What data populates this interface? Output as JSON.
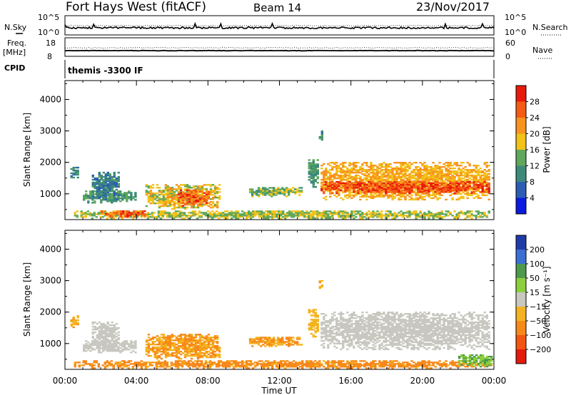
{
  "header": {
    "title": "Fort Hays West (fitACF)",
    "beam": "Beam 14",
    "date": "23/Nov/2017"
  },
  "top_panels": {
    "nsky_label": "N.Sky",
    "nsky_ticks": [
      "10^5",
      "10^0"
    ],
    "nsearch_label": "N.Search",
    "nsearch_ticks": [
      "10^5",
      "10^0"
    ],
    "freq_label": "Freq.",
    "freq_unit": "[MHz]",
    "freq_ticks": [
      "18",
      "8"
    ],
    "nave_label": "Nave",
    "nave_ticks": [
      "60",
      "0"
    ],
    "cpid_label": "CPID",
    "cpid_value": "themis -3300 IF"
  },
  "colors": {
    "power_scale": [
      "#0a1adf",
      "#2b5db5",
      "#3d8a7a",
      "#5fa85b",
      "#f2c218",
      "#f7931e",
      "#f45b14",
      "#e81a0b"
    ],
    "velocity_scale": [
      "#1f3ba8",
      "#3b6fd4",
      "#4c9a4a",
      "#8ccf3c",
      "#c8c8c0",
      "#f4b320",
      "#f7891a",
      "#f35512",
      "#e41a0b"
    ],
    "grey": "#c8c8c0"
  },
  "chart_data": [
    {
      "type": "heatmap",
      "panel": "power",
      "ylabel": "Slant Range [km]",
      "xlabel": "Time UT",
      "yticks": [
        "1000",
        "2000",
        "3000",
        "4000"
      ],
      "ylim": [
        180,
        4600
      ],
      "xticks": [
        "00:00",
        "04:00",
        "08:00",
        "12:00",
        "16:00",
        "20:00",
        "00:00"
      ],
      "xlim": [
        0,
        24
      ],
      "colorbar": {
        "label": "Power [dB]",
        "ticks": [
          "4",
          "8",
          "12",
          "16",
          "20",
          "24",
          "28"
        ],
        "range": [
          0,
          32
        ]
      },
      "regions": [
        {
          "t_start": 0.3,
          "t_end": 0.7,
          "r_min": 1500,
          "r_max": 1900,
          "value": 10
        },
        {
          "t_start": 1.0,
          "t_end": 4.0,
          "r_min": 700,
          "r_max": 1100,
          "value": 12
        },
        {
          "t_start": 1.5,
          "t_end": 3.0,
          "r_min": 800,
          "r_max": 1700,
          "value": 9
        },
        {
          "t_start": 4.5,
          "t_end": 8.6,
          "r_min": 500,
          "r_max": 1300,
          "value": 18
        },
        {
          "t_start": 6.3,
          "t_end": 8.0,
          "r_min": 600,
          "r_max": 1100,
          "value": 26
        },
        {
          "t_start": 10.3,
          "t_end": 13.2,
          "r_min": 900,
          "r_max": 1200,
          "value": 14
        },
        {
          "t_start": 13.6,
          "t_end": 14.1,
          "r_min": 1200,
          "r_max": 2100,
          "value": 12
        },
        {
          "t_start": 14.2,
          "t_end": 14.4,
          "r_min": 2700,
          "r_max": 3050,
          "value": 10
        },
        {
          "t_start": 14.3,
          "t_end": 23.7,
          "r_min": 800,
          "r_max": 2000,
          "value": 20
        },
        {
          "t_start": 14.3,
          "t_end": 23.7,
          "r_min": 1000,
          "r_max": 1400,
          "value": 27
        },
        {
          "t_start": 0.5,
          "t_end": 23.9,
          "r_min": 200,
          "r_max": 450,
          "value": 16
        },
        {
          "t_start": 2.0,
          "t_end": 4.5,
          "r_min": 250,
          "r_max": 450,
          "value": 26
        }
      ]
    },
    {
      "type": "heatmap",
      "panel": "velocity",
      "ylabel": "Slant Range [km]",
      "xlabel": "Time UT",
      "yticks": [
        "1000",
        "2000",
        "3000",
        "4000"
      ],
      "ylim": [
        180,
        4600
      ],
      "xticks": [
        "00:00",
        "04:00",
        "08:00",
        "12:00",
        "16:00",
        "20:00",
        "00:00"
      ],
      "xlim": [
        0,
        24
      ],
      "colorbar": {
        "label": "Velocity [m s⁻¹]",
        "ticks": [
          "200",
          "100",
          "50",
          "15",
          "−15",
          "−50",
          "−100",
          "−200"
        ],
        "range": [
          -250,
          250
        ]
      },
      "regions": [
        {
          "t_start": 0.3,
          "t_end": 0.7,
          "r_min": 1500,
          "r_max": 1900,
          "value": -40
        },
        {
          "t_start": 1.0,
          "t_end": 4.0,
          "r_min": 700,
          "r_max": 1100,
          "value": 0
        },
        {
          "t_start": 1.5,
          "t_end": 3.0,
          "r_min": 800,
          "r_max": 1700,
          "value": 0
        },
        {
          "t_start": 4.5,
          "t_end": 8.6,
          "r_min": 500,
          "r_max": 1300,
          "value": -50
        },
        {
          "t_start": 10.3,
          "t_end": 13.2,
          "r_min": 900,
          "r_max": 1200,
          "value": -50
        },
        {
          "t_start": 13.6,
          "t_end": 14.1,
          "r_min": 1200,
          "r_max": 2100,
          "value": -30
        },
        {
          "t_start": 14.2,
          "t_end": 14.4,
          "r_min": 2700,
          "r_max": 3050,
          "value": -40
        },
        {
          "t_start": 14.3,
          "t_end": 23.7,
          "r_min": 800,
          "r_max": 2000,
          "value": 0
        },
        {
          "t_start": 0.5,
          "t_end": 23.9,
          "r_min": 200,
          "r_max": 450,
          "value": -60
        },
        {
          "t_start": 22.0,
          "t_end": 23.9,
          "r_min": 250,
          "r_max": 650,
          "value": 30
        }
      ]
    }
  ]
}
